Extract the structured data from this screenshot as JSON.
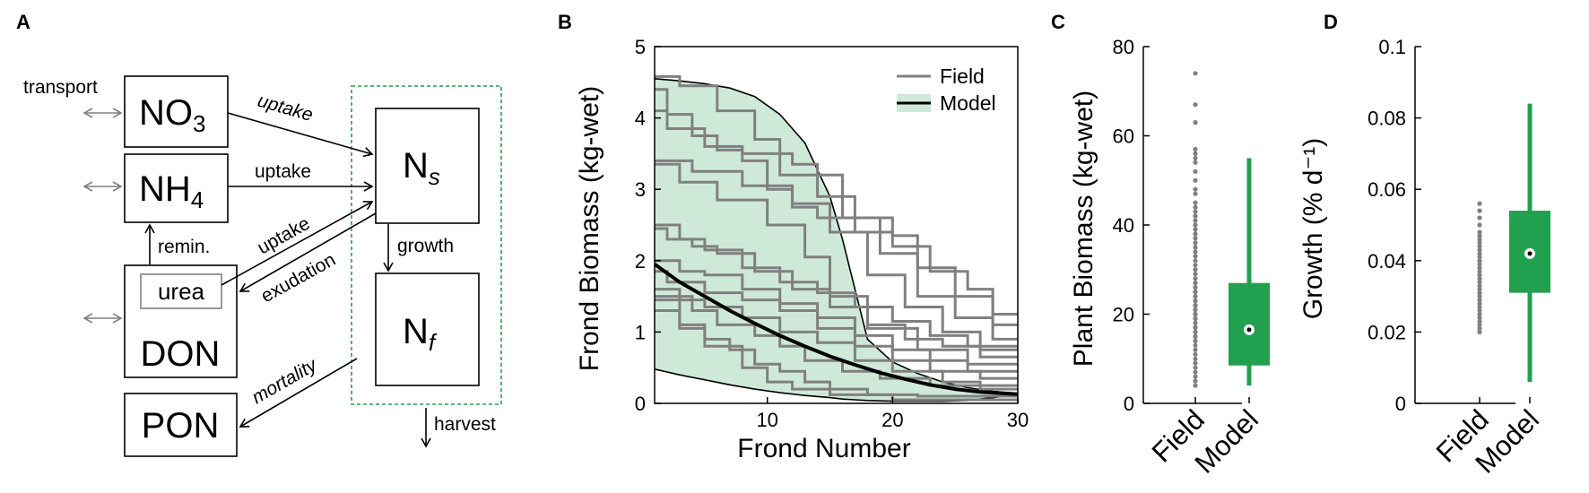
{
  "panels": {
    "a": "A",
    "b": "B",
    "c": "C",
    "d": "D"
  },
  "diagram": {
    "boxes": {
      "no3": {
        "main": "NO",
        "sub": "3"
      },
      "nh4": {
        "main": "NH",
        "sub": "4"
      },
      "don": "DON",
      "urea": "urea",
      "pon": "PON",
      "ns": {
        "main": "N",
        "sub": "s"
      },
      "nf": {
        "main": "N",
        "sub": "f"
      }
    },
    "labels": {
      "transport": "transport",
      "uptake_no3": "uptake",
      "uptake_nh4": "uptake",
      "uptake_urea": "uptake",
      "exudation": "exudation",
      "remin": "remin.",
      "growth": "growth",
      "mortality": "mortality",
      "harvest": "harvest"
    }
  },
  "chart_data": [
    {
      "type": "line",
      "xlabel": "Frond Number",
      "ylabel": "Frond Biomass (kg-wet)",
      "xlim": [
        1,
        30
      ],
      "ylim": [
        0,
        5
      ],
      "xticks": [
        10,
        20,
        30
      ],
      "yticks": [
        0,
        1,
        2,
        3,
        4,
        5
      ],
      "legend": {
        "position": "top-right",
        "entries": [
          "Field",
          "Model"
        ]
      },
      "colors": {
        "field": "#808080",
        "model": "#000000",
        "band": "#cfe9d9"
      },
      "model": {
        "x": [
          1,
          3,
          5,
          7,
          9,
          11,
          13,
          15,
          17,
          19,
          21,
          23,
          25,
          27,
          30
        ],
        "y": [
          1.95,
          1.7,
          1.5,
          1.3,
          1.12,
          0.95,
          0.8,
          0.66,
          0.54,
          0.43,
          0.34,
          0.26,
          0.2,
          0.16,
          0.13
        ]
      },
      "model_band": {
        "x": [
          1,
          3,
          5,
          7,
          9,
          11,
          13,
          15,
          16,
          17,
          18,
          20,
          22,
          24,
          26,
          28,
          30
        ],
        "upper": [
          4.55,
          4.52,
          4.48,
          4.42,
          4.3,
          4.05,
          3.65,
          2.9,
          2.3,
          1.6,
          0.9,
          0.58,
          0.42,
          0.3,
          0.22,
          0.17,
          0.14
        ],
        "lower": [
          0.48,
          0.4,
          0.33,
          0.26,
          0.2,
          0.15,
          0.11,
          0.08,
          0.06,
          0.05,
          0.04,
          0.03,
          0.03,
          0.03,
          0.04,
          0.08,
          0.12
        ]
      },
      "field": [
        {
          "start": 4.58,
          "steps": [
            [
              3,
              4.45
            ],
            [
              6,
              4.1
            ],
            [
              9,
              3.7
            ],
            [
              11,
              3.2
            ],
            [
              14,
              2.9
            ],
            [
              17,
              2.6
            ],
            [
              20,
              2.35
            ],
            [
              22,
              1.9
            ],
            [
              25,
              1.5
            ],
            [
              28,
              1.25
            ],
            [
              30,
              1.25
            ]
          ]
        },
        {
          "start": 4.4,
          "steps": [
            [
              2,
              4.05
            ],
            [
              4,
              3.75
            ],
            [
              6,
              3.55
            ],
            [
              8,
              3.4
            ],
            [
              10,
              3.0
            ],
            [
              12,
              2.75
            ],
            [
              14,
              2.6
            ],
            [
              17,
              2.4
            ],
            [
              20,
              2.2
            ],
            [
              23,
              1.85
            ],
            [
              26,
              1.6
            ],
            [
              28,
              1.1
            ],
            [
              30,
              1.1
            ]
          ]
        },
        {
          "start": 4.1,
          "steps": [
            [
              2,
              3.85
            ],
            [
              5,
              3.6
            ],
            [
              8,
              3.5
            ],
            [
              12,
              3.35
            ],
            [
              14,
              3.2
            ],
            [
              16,
              2.6
            ],
            [
              19,
              2.1
            ],
            [
              22,
              1.5
            ],
            [
              25,
              1.2
            ],
            [
              28,
              0.9
            ],
            [
              30,
              0.9
            ]
          ]
        },
        {
          "start": 3.4,
          "steps": [
            [
              4,
              3.25
            ],
            [
              8,
              3.05
            ],
            [
              12,
              2.8
            ],
            [
              15,
              2.4
            ],
            [
              18,
              1.8
            ],
            [
              21,
              1.35
            ],
            [
              24,
              1.0
            ],
            [
              27,
              0.75
            ],
            [
              30,
              0.75
            ]
          ]
        },
        {
          "start": 3.35,
          "steps": [
            [
              3,
              3.1
            ],
            [
              6,
              2.85
            ],
            [
              10,
              2.5
            ],
            [
              13,
              2.05
            ],
            [
              15,
              1.5
            ],
            [
              18,
              1.05
            ],
            [
              22,
              0.75
            ],
            [
              26,
              0.55
            ],
            [
              30,
              0.55
            ]
          ]
        },
        {
          "start": 2.5,
          "steps": [
            [
              3,
              2.3
            ],
            [
              5,
              2.15
            ],
            [
              8,
              1.9
            ],
            [
              11,
              1.7
            ],
            [
              14,
              1.55
            ],
            [
              17,
              1.35
            ],
            [
              20,
              1.15
            ],
            [
              23,
              0.95
            ],
            [
              26,
              0.8
            ],
            [
              30,
              0.8
            ]
          ]
        },
        {
          "start": 2.45,
          "steps": [
            [
              2,
              2.3
            ],
            [
              4,
              2.2
            ],
            [
              6,
              2.1
            ],
            [
              9,
              1.85
            ],
            [
              12,
              1.6
            ],
            [
              15,
              1.35
            ],
            [
              18,
              1.1
            ],
            [
              21,
              0.9
            ],
            [
              24,
              0.8
            ],
            [
              27,
              0.65
            ],
            [
              30,
              0.65
            ]
          ]
        },
        {
          "start": 2.0,
          "steps": [
            [
              3,
              1.85
            ],
            [
              5,
              1.8
            ],
            [
              8,
              1.6
            ],
            [
              11,
              1.4
            ],
            [
              14,
              1.2
            ],
            [
              17,
              0.95
            ],
            [
              20,
              0.75
            ],
            [
              23,
              0.6
            ],
            [
              26,
              0.45
            ],
            [
              30,
              0.45
            ]
          ]
        },
        {
          "start": 1.85,
          "steps": [
            [
              2,
              1.7
            ],
            [
              5,
              1.55
            ],
            [
              8,
              1.45
            ],
            [
              11,
              1.3
            ],
            [
              14,
              1.05
            ],
            [
              17,
              0.8
            ],
            [
              20,
              0.6
            ],
            [
              23,
              0.45
            ],
            [
              27,
              0.35
            ],
            [
              30,
              0.35
            ]
          ]
        },
        {
          "start": 1.6,
          "steps": [
            [
              3,
              1.45
            ],
            [
              5,
              1.35
            ],
            [
              8,
              1.2
            ],
            [
              11,
              1.0
            ],
            [
              14,
              0.85
            ],
            [
              17,
              0.6
            ],
            [
              20,
              0.45
            ],
            [
              24,
              0.3
            ],
            [
              27,
              0.25
            ],
            [
              30,
              0.25
            ]
          ]
        },
        {
          "start": 1.5,
          "steps": [
            [
              4,
              1.3
            ],
            [
              6,
              1.1
            ],
            [
              9,
              0.95
            ],
            [
              11,
              0.8
            ],
            [
              13,
              0.6
            ],
            [
              16,
              0.45
            ],
            [
              19,
              0.35
            ],
            [
              23,
              0.25
            ],
            [
              27,
              0.2
            ],
            [
              30,
              0.2
            ]
          ]
        },
        {
          "start": 1.3,
          "steps": [
            [
              3,
              1.1
            ],
            [
              5,
              0.9
            ],
            [
              7,
              0.75
            ],
            [
              9,
              0.55
            ],
            [
              11,
              0.45
            ],
            [
              13,
              0.3
            ],
            [
              15,
              0.2
            ],
            [
              18,
              0.12
            ],
            [
              22,
              0.1
            ],
            [
              30,
              0.1
            ]
          ]
        },
        {
          "start": 1.45,
          "steps": [
            [
              3,
              1.05
            ],
            [
              5,
              0.8
            ],
            [
              8,
              0.5
            ],
            [
              10,
              0.3
            ],
            [
              12,
              0.2
            ],
            [
              15,
              0.12
            ],
            [
              20,
              0.05
            ],
            [
              30,
              0.05
            ]
          ]
        }
      ]
    },
    {
      "type": "box",
      "ylabel": "Plant Biomass (kg-wet)",
      "ylim": [
        0,
        80
      ],
      "yticks": [
        0,
        20,
        40,
        60,
        80
      ],
      "categories": [
        "Field",
        "Model"
      ],
      "colors": {
        "field_points": "#808080",
        "model_box": "#21a04f"
      },
      "field_points": [
        74,
        67,
        63,
        57,
        56,
        55,
        54,
        52,
        50,
        48,
        47,
        45,
        44,
        43,
        42,
        41,
        40,
        39,
        38,
        37,
        36,
        35,
        34,
        33,
        32,
        31,
        30,
        30,
        29,
        28,
        27,
        27,
        26,
        25,
        25,
        24,
        24,
        23,
        23,
        22,
        22,
        21,
        21,
        20,
        20,
        19,
        19,
        18,
        18,
        17,
        17,
        16,
        16,
        15,
        15,
        14,
        14,
        13,
        12,
        11,
        10,
        9,
        8,
        7,
        6,
        5,
        4
      ],
      "model_box": {
        "whisker_low": 4,
        "q1": 8.5,
        "median": 16.5,
        "q3": 27,
        "whisker_high": 55
      }
    },
    {
      "type": "box",
      "ylabel": "Growth (% d⁻¹)",
      "ylim": [
        0,
        0.1
      ],
      "yticks": [
        0,
        0.02,
        0.04,
        0.06,
        0.08,
        0.1
      ],
      "ytick_labels": [
        "0",
        "0.02",
        "0.04",
        "0.06",
        "0.08",
        "0.1"
      ],
      "categories": [
        "Field",
        "Model"
      ],
      "colors": {
        "field_points": "#808080",
        "model_box": "#21a04f"
      },
      "field_points": [
        0.056,
        0.054,
        0.052,
        0.05,
        0.048,
        0.047,
        0.046,
        0.045,
        0.044,
        0.043,
        0.042,
        0.041,
        0.04,
        0.039,
        0.038,
        0.037,
        0.036,
        0.035,
        0.034,
        0.033,
        0.032,
        0.031,
        0.03,
        0.029,
        0.028,
        0.027,
        0.026,
        0.025,
        0.024,
        0.023,
        0.022,
        0.021,
        0.02
      ],
      "model_box": {
        "whisker_low": 0.006,
        "q1": 0.031,
        "median": 0.042,
        "q3": 0.054,
        "whisker_high": 0.084
      }
    }
  ]
}
